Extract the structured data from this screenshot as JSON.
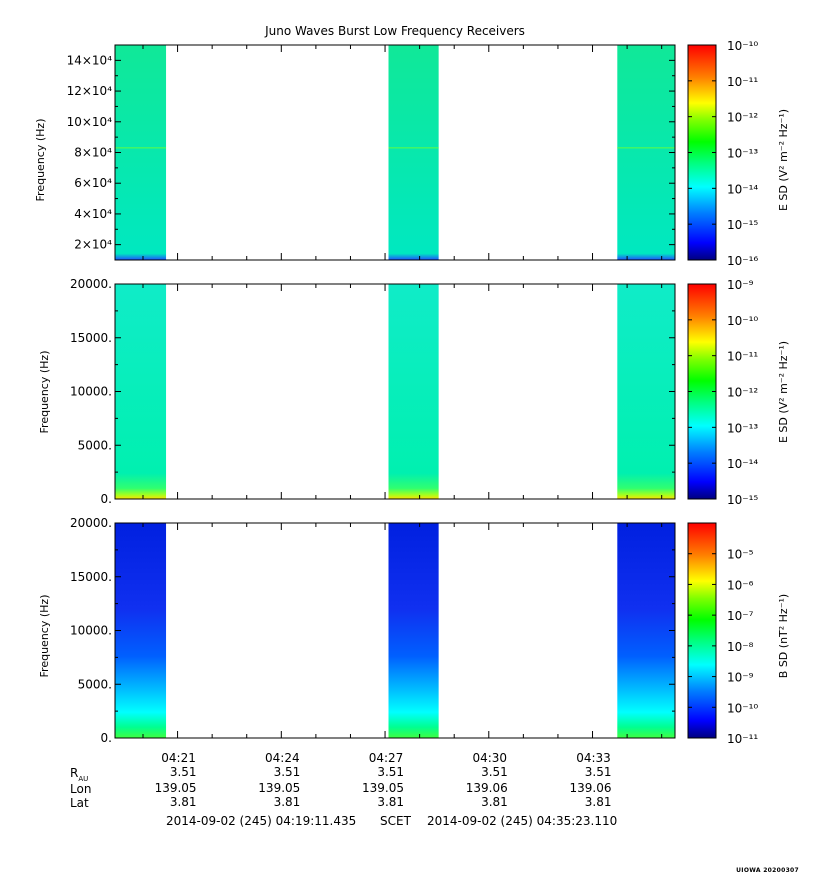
{
  "title": "Juno Waves Burst Low Frequency Receivers",
  "stamp": "UIOWA 20200307",
  "colors": {
    "colormap": [
      "#000080",
      "#0000ff",
      "#0080ff",
      "#00ffff",
      "#00ff80",
      "#00ff00",
      "#80ff00",
      "#ffff00",
      "#ff8000",
      "#ff0000"
    ]
  },
  "chart_data": [
    {
      "type": "heatmap",
      "panel": "upper",
      "ylabel": "Frequency (Hz)",
      "y_tick_labels": [
        "2×10⁴",
        "4×10⁴",
        "6×10⁴",
        "8×10⁴",
        "10×10⁴",
        "12×10⁴",
        "14×10⁴"
      ],
      "y_ticks": [
        20000,
        40000,
        60000,
        80000,
        100000,
        120000,
        140000
      ],
      "ylim": [
        10000,
        150000
      ],
      "colorbar_label": "E SD (V² m⁻² Hz⁻¹)",
      "colorbar_tick_labels": [
        "10⁻¹²",
        "10⁻¹³",
        "10⁻¹⁴",
        "10⁻¹⁵",
        "10⁻¹⁶"
      ],
      "colorbar_exponents": [
        -10,
        -11,
        -12,
        -13,
        -14,
        -15,
        -16
      ],
      "colorbar_range": [
        1e-16,
        1e-10
      ],
      "burst_level": "1e-13.8",
      "line_feature_hz": 83000
    },
    {
      "type": "heatmap",
      "panel": "middle",
      "ylabel": "Frequency (Hz)",
      "y_tick_labels": [
        "0.",
        "5000.",
        "10000.",
        "15000.",
        "20000."
      ],
      "y_ticks": [
        0,
        5000,
        10000,
        15000,
        20000
      ],
      "ylim": [
        0,
        20000
      ],
      "colorbar_label": "E SD (V² m⁻² Hz⁻¹)",
      "colorbar_exponents": [
        -9,
        -10,
        -11,
        -12,
        -13,
        -14,
        -15
      ],
      "colorbar_range": [
        1e-15,
        1e-09
      ],
      "burst_level": "1e-13.3"
    },
    {
      "type": "heatmap",
      "panel": "lower",
      "ylabel": "Frequency (Hz)",
      "y_tick_labels": [
        "0.",
        "5000.",
        "10000.",
        "15000.",
        "20000."
      ],
      "y_ticks": [
        0,
        5000,
        10000,
        15000,
        20000
      ],
      "ylim": [
        0,
        20000
      ],
      "colorbar_label": "B SD (nT² Hz⁻¹)",
      "colorbar_exponents": [
        -5,
        -6,
        -7,
        -8,
        -9,
        -10,
        -11
      ],
      "colorbar_range": [
        1e-11,
        0.0001
      ],
      "burst_level": "1e-10.3"
    }
  ],
  "time_axis": {
    "xlim": [
      "04:19:11.435",
      "04:35:23.110"
    ],
    "tick_labels": [
      "04:21",
      "04:24",
      "04:27",
      "04:30",
      "04:33"
    ],
    "bursts": [
      {
        "start": "04:19:11",
        "end": "04:20:40"
      },
      {
        "start": "04:27:06",
        "end": "04:28:33"
      },
      {
        "start": "04:33:43",
        "end": "04:35:08"
      },
      {
        "start": "04:34:12",
        "end": "04:35:23"
      }
    ]
  },
  "ephemeris": {
    "row_labels": [
      "R",
      "Lon",
      "Lat"
    ],
    "r_subscript": "AU",
    "r_values": [
      "3.51",
      "3.51",
      "3.51",
      "3.51",
      "3.51"
    ],
    "lon_values": [
      "139.05",
      "139.05",
      "139.05",
      "139.06",
      "139.06"
    ],
    "lat_values": [
      "3.81",
      "3.81",
      "3.81",
      "3.81",
      "3.81"
    ]
  },
  "footer": {
    "start": "2014-09-02 (245) 04:19:11.435",
    "scet": "SCET",
    "end": "2014-09-02 (245) 04:35:23.110"
  }
}
